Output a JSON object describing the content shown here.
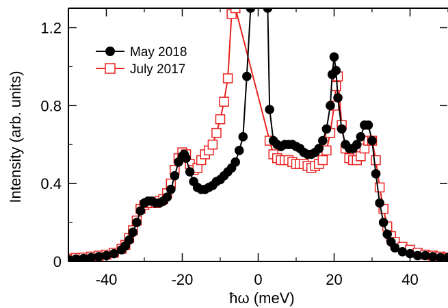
{
  "chart_data": {
    "type": "scatter",
    "title": "",
    "xlabel": "ħω (meV)",
    "ylabel": "Intensity (arb. units)",
    "xlim": [
      -50,
      50
    ],
    "ylim": [
      0,
      1.3
    ],
    "xticks": [
      -40,
      -20,
      0,
      20,
      40
    ],
    "xtick_labels": [
      "-40",
      "-20",
      "0",
      "20",
      "40"
    ],
    "yticks": [
      0,
      0.4,
      0.8,
      1.2
    ],
    "ytick_labels": [
      "0",
      "0.4",
      "0.8",
      "1.2"
    ],
    "grid": false,
    "legend_position": "top-left",
    "series": [
      {
        "name": "May 2018",
        "marker": "filled-circle",
        "color": "#000000",
        "x": [
          -50,
          -48,
          -46,
          -44,
          -42,
          -40,
          -38,
          -36,
          -35,
          -34,
          -33,
          -32,
          -31,
          -30,
          -29,
          -28,
          -27,
          -26,
          -25,
          -24,
          -23,
          -22,
          -21,
          -20,
          -19.5,
          -19,
          -18,
          -17,
          -16,
          -15,
          -14,
          -13,
          -12,
          -11,
          -10,
          -9,
          -8,
          -7,
          -6,
          -5,
          -4,
          -3,
          -2,
          2.5,
          3,
          4,
          5,
          6,
          7,
          8,
          9,
          10,
          11,
          12,
          13,
          14,
          15,
          16,
          17,
          18,
          19,
          19.5,
          20,
          20.5,
          21,
          22,
          23,
          24,
          25,
          26,
          27,
          28,
          29,
          30,
          31,
          32,
          33,
          34,
          35,
          36,
          38,
          40,
          42,
          44,
          46,
          48,
          50
        ],
        "y": [
          0.01,
          0.012,
          0.015,
          0.02,
          0.025,
          0.03,
          0.04,
          0.06,
          0.08,
          0.11,
          0.15,
          0.2,
          0.26,
          0.3,
          0.31,
          0.31,
          0.3,
          0.3,
          0.31,
          0.33,
          0.37,
          0.44,
          0.51,
          0.54,
          0.55,
          0.53,
          0.46,
          0.41,
          0.38,
          0.37,
          0.37,
          0.38,
          0.39,
          0.41,
          0.42,
          0.44,
          0.46,
          0.48,
          0.51,
          0.57,
          0.64,
          0.95,
          1.3,
          1.3,
          0.78,
          0.62,
          0.6,
          0.59,
          0.6,
          0.6,
          0.6,
          0.59,
          0.58,
          0.56,
          0.55,
          0.55,
          0.56,
          0.58,
          0.62,
          0.68,
          0.8,
          0.96,
          1.05,
          0.98,
          0.84,
          0.68,
          0.6,
          0.58,
          0.58,
          0.6,
          0.64,
          0.7,
          0.7,
          0.62,
          0.45,
          0.3,
          0.2,
          0.14,
          0.1,
          0.07,
          0.05,
          0.04,
          0.03,
          0.03,
          0.025,
          0.02,
          0.02
        ]
      },
      {
        "name": "July 2017",
        "marker": "open-square",
        "color": "#e8211e",
        "x": [
          -50,
          -48,
          -46,
          -44,
          -42,
          -40,
          -38,
          -36,
          -35,
          -34,
          -33,
          -32,
          -31,
          -30,
          -29,
          -28,
          -27,
          -26,
          -25,
          -24,
          -23,
          -22,
          -21,
          -20,
          -19,
          -18,
          -17,
          -16,
          -15,
          -14,
          -13,
          -12,
          -11,
          -10,
          -9,
          -8,
          -7,
          -6,
          3,
          4,
          5,
          6,
          7,
          8,
          9,
          10,
          11,
          12,
          13,
          14,
          15,
          16,
          17,
          18,
          19,
          20,
          20.5,
          21,
          22,
          23,
          24,
          25,
          26,
          27,
          28,
          29,
          30,
          31,
          32,
          33,
          34,
          35,
          36,
          38,
          40,
          42,
          44,
          46,
          48,
          50
        ],
        "y": [
          0.015,
          0.018,
          0.02,
          0.025,
          0.03,
          0.035,
          0.045,
          0.065,
          0.085,
          0.12,
          0.16,
          0.21,
          0.27,
          0.29,
          0.3,
          0.3,
          0.3,
          0.31,
          0.32,
          0.35,
          0.4,
          0.47,
          0.53,
          0.56,
          0.55,
          0.5,
          0.47,
          0.48,
          0.52,
          0.55,
          0.57,
          0.6,
          0.66,
          0.73,
          0.82,
          0.94,
          1.27,
          1.3,
          0.62,
          0.55,
          0.53,
          0.52,
          0.52,
          0.52,
          0.51,
          0.5,
          0.5,
          0.5,
          0.49,
          0.48,
          0.49,
          0.5,
          0.52,
          0.57,
          0.66,
          0.8,
          0.9,
          0.95,
          0.7,
          0.58,
          0.53,
          0.52,
          0.52,
          0.54,
          0.58,
          0.62,
          0.62,
          0.52,
          0.38,
          0.27,
          0.18,
          0.13,
          0.1,
          0.075,
          0.06,
          0.045,
          0.035,
          0.03,
          0.025,
          0.02
        ]
      }
    ]
  }
}
